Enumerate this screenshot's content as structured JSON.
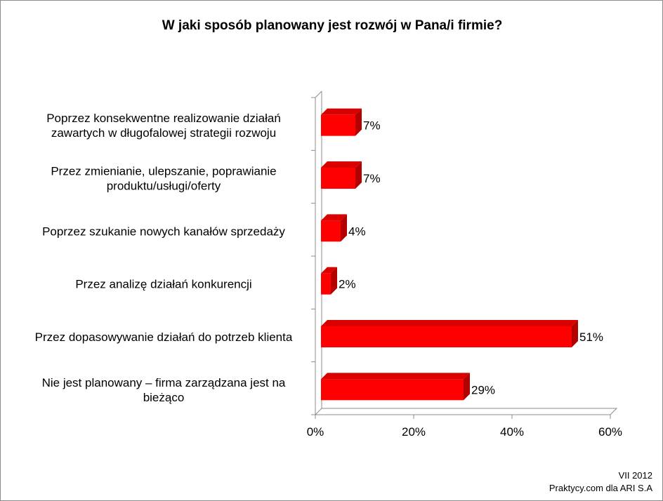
{
  "chart_data": {
    "type": "bar",
    "orientation": "horizontal",
    "style": "3d",
    "title": "W jaki sposób planowany jest rozwój w Pana/i firmie?",
    "categories": [
      [
        "Poprzez konsekwentne realizowanie działań",
        "zawartych w długofalowej strategii rozwoju"
      ],
      [
        "Przez zmienianie, ulepszanie, poprawianie",
        "produktu/usługi/oferty"
      ],
      [
        "Poprzez szukanie nowych kanałów sprzedaży"
      ],
      [
        "Przez analizę działań konkurencji"
      ],
      [
        "Przez dopasowywanie działań do potrzeb klienta"
      ],
      [
        "Nie jest planowany – firma zarządzana jest na",
        "bieżąco"
      ]
    ],
    "values": [
      7,
      7,
      4,
      2,
      51,
      29
    ],
    "value_labels": [
      "7%",
      "7%",
      "4%",
      "2%",
      "51%",
      "29%"
    ],
    "xlim": [
      0,
      60
    ],
    "xticks": [
      0,
      20,
      40,
      60
    ],
    "xtick_labels": [
      "0%",
      "20%",
      "40%",
      "60%"
    ],
    "grid": false,
    "legend": "none",
    "colors": {
      "bar_front": "#ff0000",
      "bar_side": "#b30000",
      "bar_top": "#d90000",
      "axis": "#8c8c8c"
    }
  },
  "footer": {
    "date": "VII 2012",
    "source": "Praktycy.com dla ARI S.A"
  }
}
